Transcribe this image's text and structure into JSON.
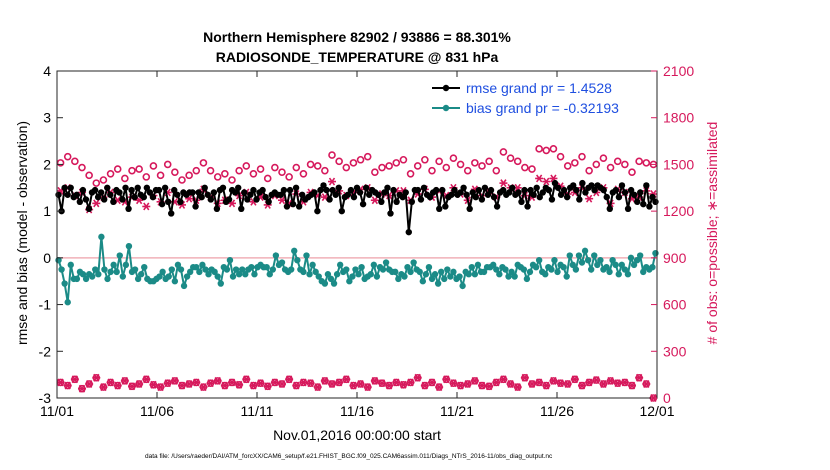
{
  "chart_data": {
    "type": "line",
    "title": [
      "Northern Hemisphere 82902 / 93886 = 88.301%",
      "RADIOSONDE_TEMPERATURE @ 831 hPa"
    ],
    "xlabel": "Nov.01,2016 00:00:00 start",
    "ylabel": "rmse and bias (model - observation)",
    "ylabel_right": "# of obs: o=possible; ∗=assimilated",
    "footnote": "data file: /Users/raeder/DAI/ATM_forcXX/CAM6_setup/f.e21.FHIST_BGC.f09_025.CAM6assim.011/Diags_NTrS_2016-11/obs_diag_output.nc",
    "xlim": [
      0,
      30
    ],
    "ylim": [
      -3,
      4
    ],
    "ylim_right": [
      0,
      2100
    ],
    "x_ticks": [
      0,
      5,
      10,
      15,
      20,
      25,
      30
    ],
    "x_tick_labels": [
      "11/01",
      "11/06",
      "11/11",
      "11/16",
      "11/21",
      "11/26",
      "12/01"
    ],
    "y_ticks": [
      -3,
      -2,
      -1,
      0,
      1,
      2,
      3,
      4
    ],
    "y_tick_labels": [
      "-3",
      "-2",
      "-1",
      "0",
      "1",
      "2",
      "3",
      "4"
    ],
    "y_right_ticks": [
      0,
      300,
      600,
      900,
      1200,
      1500,
      1800,
      2100
    ],
    "y_right_tick_labels": [
      "0",
      "300",
      "600",
      "900",
      "1200",
      "1500",
      "1800",
      "2100"
    ],
    "legend": {
      "position": "top-right",
      "entries": [
        {
          "label": "rmse grand pr = 1.4528",
          "color": "#000000",
          "text_color": "#1f4fe0"
        },
        {
          "label": "bias grand pr = -0.32193",
          "color": "#1b8b87",
          "text_color": "#1f4fe0"
        }
      ]
    },
    "series": [
      {
        "name": "rmse grand pr = 1.4528",
        "axis": "left",
        "color": "#000000",
        "marker": "dot",
        "values": [
          1.35,
          1.0,
          1.5,
          1.35,
          1.5,
          1.3,
          1.35,
          1.2,
          1.45,
          1.25,
          1.05,
          1.4,
          1.45,
          1.3,
          1.4,
          1.25,
          1.5,
          1.35,
          1.2,
          1.45,
          1.4,
          1.25,
          1.5,
          1.05,
          1.45,
          1.3,
          1.5,
          1.35,
          1.3,
          1.5,
          1.4,
          1.3,
          1.45,
          1.45,
          1.15,
          1.5,
          1.2,
          0.95,
          1.45,
          1.35,
          1.2,
          1.4,
          1.35,
          1.4,
          1.4,
          1.1,
          1.4,
          1.3,
          1.5,
          1.35,
          1.25,
          1.4,
          1.05,
          1.45,
          1.5,
          1.2,
          1.25,
          1.45,
          1.4,
          1.5,
          1.05,
          1.4,
          1.25,
          1.35,
          1.45,
          1.25,
          1.4,
          1.45,
          1.3,
          1.2,
          1.35,
          1.4,
          1.35,
          1.35,
          1.45,
          1.1,
          1.45,
          1.15,
          1.5,
          1.1,
          1.35,
          1.25,
          1.3,
          1.35,
          1.4,
          1.0,
          1.45,
          1.55,
          1.45,
          1.25,
          1.45,
          1.35,
          1.5,
          1.0,
          1.3,
          1.35,
          1.45,
          1.3,
          1.5,
          1.4,
          1.15,
          1.5,
          1.35,
          1.45,
          1.4,
          1.35,
          1.2,
          1.4,
          1.5,
          0.95,
          1.45,
          1.2,
          1.35,
          1.3,
          1.4,
          0.55,
          1.2,
          1.45,
          1.45,
          1.25,
          1.5,
          1.35,
          1.3,
          1.4,
          1.45,
          1.05,
          1.45,
          1.1,
          1.3,
          1.35,
          1.45,
          1.35,
          1.4,
          1.5,
          1.35,
          1.05,
          1.4,
          1.3,
          1.45,
          1.25,
          1.5,
          1.35,
          1.45,
          1.3,
          1.1,
          1.4,
          1.45,
          1.35,
          1.4,
          1.5,
          1.35,
          1.4,
          1.2,
          1.45,
          1.1,
          1.45,
          1.35,
          1.5,
          1.3,
          1.4,
          1.5,
          1.45,
          1.25,
          1.6,
          1.5,
          1.35,
          1.45,
          1.3,
          1.5,
          1.55,
          1.45,
          1.25,
          1.6,
          1.4,
          1.5,
          1.55,
          1.45,
          1.55,
          1.5,
          1.45,
          1.3,
          1.05,
          1.4,
          1.45,
          1.3,
          1.55,
          1.4,
          1.05,
          1.45,
          1.35,
          1.2,
          1.4,
          1.15,
          1.55,
          1.1,
          1.3,
          1.2
        ]
      },
      {
        "name": "bias grand pr = -0.32193",
        "axis": "left",
        "color": "#1b8b87",
        "marker": "dot",
        "values": [
          -0.05,
          -0.25,
          -0.55,
          -0.95,
          -0.15,
          -0.45,
          -0.45,
          -0.3,
          -0.35,
          -0.45,
          -0.35,
          -0.4,
          -0.25,
          -0.35,
          0.45,
          -0.25,
          -0.45,
          -0.3,
          -0.15,
          -0.3,
          0.05,
          -0.4,
          -0.15,
          0.25,
          -0.3,
          -0.25,
          -0.45,
          -0.35,
          -0.2,
          -0.45,
          -0.5,
          -0.5,
          -0.45,
          -0.4,
          -0.3,
          -0.45,
          -0.4,
          -0.25,
          -0.5,
          -0.15,
          -0.25,
          -0.6,
          -0.4,
          -0.3,
          -0.2,
          -0.2,
          -0.3,
          -0.15,
          -0.25,
          -0.35,
          -0.25,
          -0.3,
          -0.4,
          -0.55,
          -0.2,
          -0.25,
          -0.05,
          -0.4,
          -0.25,
          -0.35,
          -0.25,
          -0.35,
          -0.25,
          -0.2,
          -0.35,
          -0.2,
          -0.15,
          -0.2,
          -0.2,
          -0.35,
          -0.25,
          0.05,
          -0.15,
          -0.1,
          -0.25,
          -0.3,
          -0.25,
          0.15,
          -0.05,
          -0.25,
          -0.3,
          0.05,
          -0.35,
          -0.15,
          -0.3,
          -0.4,
          -0.5,
          -0.55,
          -0.35,
          -0.45,
          -0.55,
          -0.35,
          -0.15,
          -0.3,
          -0.25,
          -0.5,
          -0.4,
          -0.25,
          -0.35,
          -0.2,
          -0.45,
          -0.4,
          -0.35,
          -0.15,
          -0.4,
          -0.2,
          -0.25,
          -0.1,
          -0.25,
          -0.3,
          -0.3,
          -0.45,
          -0.35,
          -0.4,
          -0.2,
          -0.3,
          -0.1,
          -0.25,
          -0.3,
          -0.5,
          -0.35,
          -0.2,
          -0.45,
          -0.35,
          -0.55,
          -0.3,
          -0.45,
          -0.25,
          -0.4,
          -0.3,
          -0.45,
          -0.4,
          -0.6,
          -0.3,
          -0.35,
          -0.2,
          -0.35,
          -0.15,
          -0.3,
          -0.3,
          -0.2,
          -0.2,
          -0.15,
          -0.25,
          -0.35,
          -0.2,
          -0.25,
          -0.4,
          -0.3,
          -0.4,
          -0.15,
          -0.2,
          -0.25,
          -0.45,
          -0.3,
          -0.15,
          -0.2,
          -0.05,
          -0.3,
          -0.35,
          -0.2,
          -0.25,
          -0.05,
          -0.3,
          -0.15,
          -0.2,
          -0.4,
          0.05,
          -0.15,
          -0.25,
          0.05,
          -0.1,
          0.15,
          -0.05,
          -0.25,
          0.05,
          -0.15,
          -0.05,
          -0.25,
          -0.2,
          -0.3,
          -0.05,
          -0.15,
          -0.35,
          -0.15,
          -0.25,
          -0.35,
          0.0,
          -0.15,
          -0.05,
          0.05,
          -0.3,
          -0.2,
          -0.25,
          -0.2,
          0.1
        ]
      },
      {
        "name": "",
        "axis": "right",
        "color": "#d6195c",
        "marker": "open-circle",
        "values": [
          1510,
          1550,
          1520,
          1480,
          1430,
          1380,
          1400,
          1440,
          1470,
          1410,
          1460,
          1470,
          1420,
          1490,
          1430,
          1500,
          1450,
          1400,
          1430,
          1460,
          1510,
          1460,
          1420,
          1440,
          1400,
          1460,
          1490,
          1440,
          1470,
          1410,
          1480,
          1450,
          1420,
          1480,
          1440,
          1500,
          1490,
          1460,
          1560,
          1520,
          1480,
          1510,
          1530,
          1550,
          1450,
          1480,
          1490,
          1510,
          1530,
          1440,
          1490,
          1530,
          1460,
          1520,
          1480,
          1540,
          1500,
          1460,
          1510,
          1490,
          1520,
          1460,
          1580,
          1540,
          1520,
          1480,
          1470,
          1600,
          1590,
          1600,
          1550,
          1490,
          1510,
          1550,
          1460,
          1500,
          1540,
          1480,
          1520,
          1500,
          1450,
          1520,
          1510,
          1500
        ]
      },
      {
        "name": "",
        "axis": "right",
        "color": "#d6195c",
        "marker": "asterisk",
        "values": [
          1330,
          1350,
          1300,
          1320,
          1210,
          1250,
          1290,
          1320,
          1270,
          1260,
          1290,
          1270,
          1230,
          1300,
          1260,
          1320,
          1260,
          1240,
          1280,
          1270,
          1340,
          1290,
          1250,
          1270,
          1250,
          1300,
          1320,
          1260,
          1290,
          1240,
          1300,
          1270,
          1250,
          1310,
          1260,
          1320,
          1300,
          1290,
          1390,
          1330,
          1300,
          1320,
          1340,
          1350,
          1270,
          1310,
          1300,
          1330,
          1330,
          1270,
          1310,
          1340,
          1290,
          1330,
          1300,
          1350,
          1310,
          1270,
          1340,
          1300,
          1330,
          1290,
          1380,
          1350,
          1350,
          1300,
          1290,
          1410,
          1390,
          1410,
          1360,
          1310,
          1320,
          1350,
          1280,
          1320,
          1350,
          1250,
          1340,
          1320,
          1280,
          1290,
          1330,
          1310
        ]
      },
      {
        "name": "",
        "axis": "right",
        "color": "#d6195c",
        "marker": "open-circle",
        "values": [
          100,
          80,
          120,
          60,
          90,
          130,
          70,
          100,
          80,
          110,
          75,
          90,
          120,
          85,
          70,
          95,
          110,
          80,
          90,
          100,
          70,
          95,
          110,
          80,
          100,
          85,
          120,
          80,
          95,
          75,
          100,
          90,
          120,
          80,
          100,
          95,
          70,
          110,
          90,
          100,
          120,
          80,
          90,
          70,
          110,
          95,
          80,
          100,
          85,
          100,
          130,
          80,
          100,
          70,
          120,
          95,
          80,
          90,
          110,
          80,
          75,
          100,
          120,
          90,
          70,
          130,
          90,
          100,
          80,
          110,
          95,
          90,
          120,
          80,
          100,
          115,
          90,
          110,
          95,
          100,
          80,
          130,
          90,
          0
        ]
      },
      {
        "name": "",
        "axis": "right",
        "color": "#d6195c",
        "marker": "asterisk",
        "values": [
          100,
          80,
          120,
          60,
          90,
          130,
          70,
          100,
          80,
          110,
          75,
          90,
          120,
          85,
          70,
          95,
          110,
          80,
          90,
          100,
          70,
          95,
          110,
          80,
          100,
          85,
          120,
          80,
          95,
          75,
          100,
          90,
          120,
          80,
          100,
          95,
          70,
          110,
          90,
          100,
          120,
          80,
          90,
          70,
          110,
          95,
          80,
          100,
          85,
          100,
          130,
          80,
          100,
          70,
          120,
          95,
          80,
          90,
          110,
          80,
          75,
          100,
          120,
          90,
          70,
          130,
          90,
          100,
          80,
          110,
          95,
          90,
          120,
          80,
          100,
          115,
          90,
          110,
          95,
          100,
          80,
          130,
          90,
          0
        ]
      }
    ]
  },
  "colors": {
    "left_axis": "#000000",
    "right_axis": "#d6195c",
    "zero_line": "#f0b0b8",
    "legend_text": "#1f4fe0"
  }
}
